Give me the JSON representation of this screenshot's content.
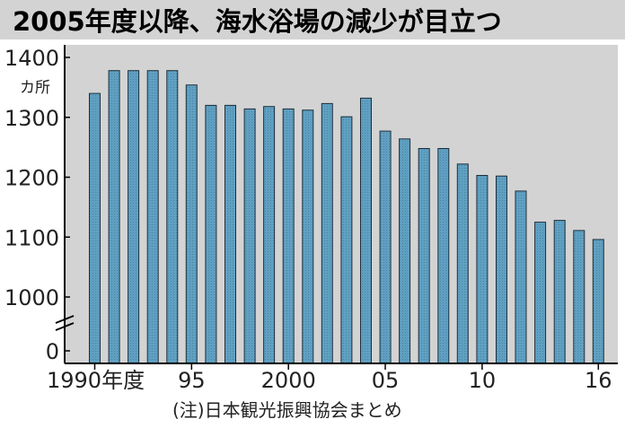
{
  "chart_data": {
    "type": "bar",
    "title": "2005年度以降、海水浴場の減少が目立つ",
    "ylabel": "カ所",
    "note": "(注)日本観光振興協会まとめ",
    "x": [
      1990,
      1991,
      1992,
      1993,
      1994,
      1995,
      1996,
      1997,
      1998,
      1999,
      2000,
      2001,
      2002,
      2003,
      2004,
      2005,
      2006,
      2007,
      2008,
      2009,
      2010,
      2011,
      2012,
      2013,
      2014,
      2015,
      2016
    ],
    "values": [
      1340,
      1378,
      1378,
      1378,
      1378,
      1354,
      1320,
      1320,
      1314,
      1318,
      1314,
      1312,
      1323,
      1301,
      1332,
      1277,
      1264,
      1248,
      1248,
      1222,
      1203,
      1202,
      1177,
      1125,
      1128,
      1111,
      1096
    ],
    "x_tick_labels": [
      {
        "x": 1990,
        "label": "1990年度"
      },
      {
        "x": 1995,
        "label": "95"
      },
      {
        "x": 2000,
        "label": "2000"
      },
      {
        "x": 2005,
        "label": "05"
      },
      {
        "x": 2010,
        "label": "10"
      },
      {
        "x": 2016,
        "label": "16"
      }
    ],
    "y_ticks": [
      1000,
      1100,
      1200,
      1300,
      1400
    ],
    "y_zero_label": "0",
    "ylim": [
      0,
      1400
    ],
    "y_axis_break": true,
    "grid": false,
    "colors": {
      "title_bg": "#d3d3d3",
      "plot_bg": "#d3d3d3",
      "bar_fill": "#5fa0c2",
      "bar_stroke": "#1e2f3a"
    }
  }
}
